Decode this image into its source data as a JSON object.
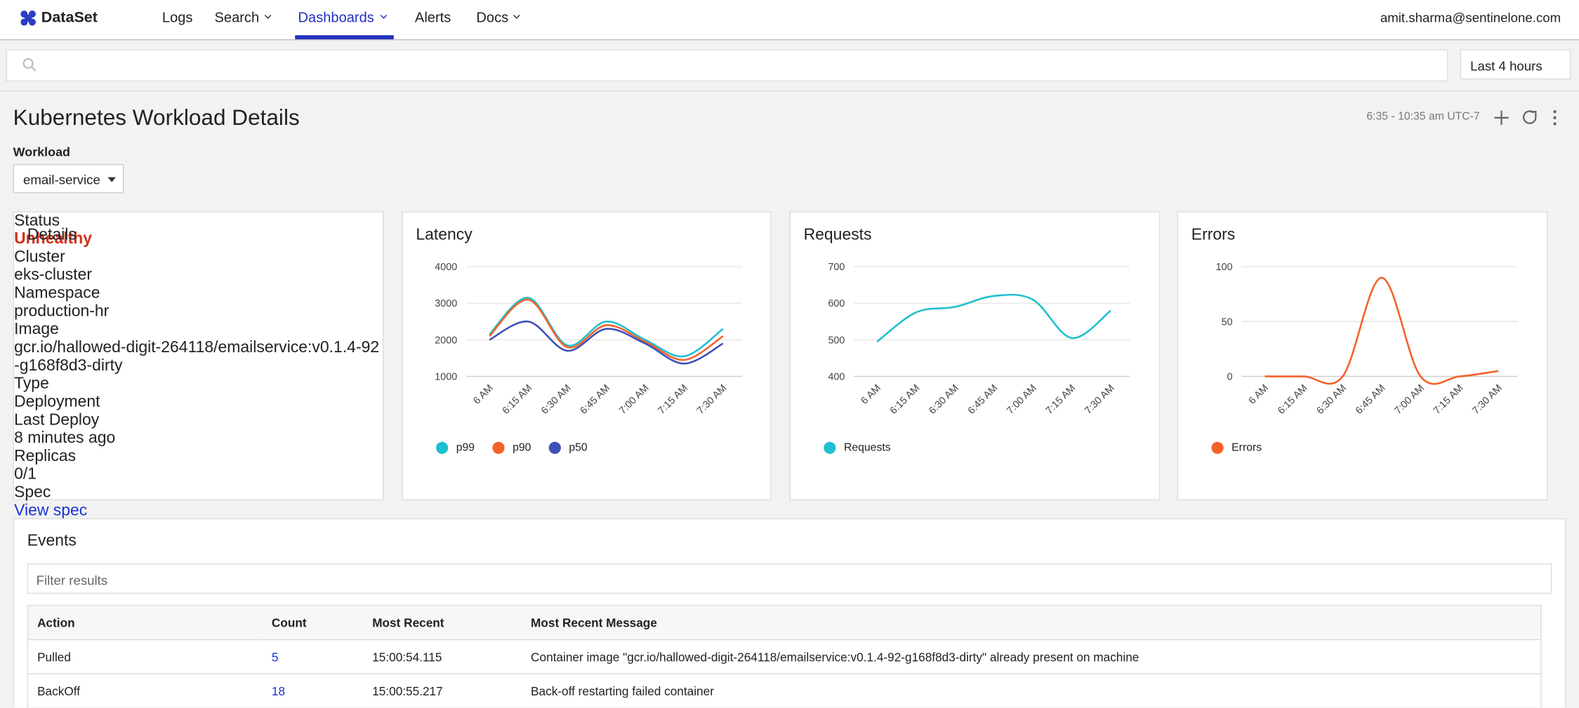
{
  "nav": {
    "brand": "DataSet",
    "items": [
      "Logs",
      "Search",
      "Dashboards",
      "Alerts",
      "Docs"
    ],
    "user": "amit.sharma@sentinelone.com"
  },
  "search": {
    "time_range": "Last 4 hours"
  },
  "dashboard": {
    "title": "Kubernetes Workload Details",
    "range": "6:35 - 10:35 am UTC-7",
    "workload_label": "Workload",
    "workload": "email-service"
  },
  "details": {
    "title": "Details",
    "rows": [
      [
        "Status",
        "Unhealthy"
      ],
      [
        "Cluster",
        "eks-cluster"
      ],
      [
        "Namespace",
        "production-hr"
      ],
      [
        "Image",
        "gcr.io/hallowed-digit-264118/emailservice:v0.1.4-92-g168f8d3-dirty"
      ],
      [
        "Type",
        "Deployment"
      ],
      [
        "Last Deploy",
        "8 minutes ago"
      ],
      [
        "Replicas",
        "0/1"
      ],
      [
        "Spec",
        "View spec"
      ]
    ]
  },
  "chart_data": [
    {
      "type": "line",
      "title": "Latency",
      "categories": [
        "6 AM",
        "6:15 AM",
        "6:30 AM",
        "6:45 AM",
        "7:00 AM",
        "7:15 AM",
        "7:30 AM"
      ],
      "ylim": [
        1000,
        4000
      ],
      "yticks": [
        1000,
        2000,
        3000,
        4000
      ],
      "grid": true,
      "series": [
        {
          "name": "p99",
          "color": "#1fbfcf",
          "values": [
            2150,
            3150,
            1850,
            2500,
            2000,
            1550,
            2300
          ]
        },
        {
          "name": "p90",
          "color": "#f4622a",
          "values": [
            2100,
            3100,
            1800,
            2400,
            1950,
            1450,
            2100
          ]
        },
        {
          "name": "p50",
          "color": "#3f4fb5",
          "values": [
            2000,
            2500,
            1700,
            2300,
            1900,
            1350,
            1900
          ]
        }
      ]
    },
    {
      "type": "line",
      "title": "Requests",
      "categories": [
        "6 AM",
        "6:15 AM",
        "6:30 AM",
        "6:45 AM",
        "7:00 AM",
        "7:15 AM",
        "7:30 AM"
      ],
      "ylim": [
        400,
        700
      ],
      "yticks": [
        400,
        500,
        600,
        700
      ],
      "grid": true,
      "series": [
        {
          "name": "Requests",
          "color": "#1fbfcf",
          "values": [
            495,
            575,
            590,
            620,
            610,
            505,
            580
          ]
        }
      ]
    },
    {
      "type": "line",
      "title": "Errors",
      "categories": [
        "6 AM",
        "6:15 AM",
        "6:30 AM",
        "6:45 AM",
        "7:00 AM",
        "7:15 AM",
        "7:30 AM"
      ],
      "ylim": [
        0,
        100
      ],
      "yticks": [
        0,
        50,
        100
      ],
      "grid": true,
      "series": [
        {
          "name": "Errors",
          "color": "#f4622a",
          "values": [
            0,
            0,
            0,
            90,
            0,
            0,
            5
          ]
        }
      ]
    }
  ],
  "events": {
    "title": "Events",
    "filter_placeholder": "Filter results",
    "columns": [
      "Action",
      "Count",
      "Most Recent",
      "Most Recent Message"
    ],
    "rows": [
      [
        "Pulled",
        "5",
        "15:00:54.115",
        "Container image \"gcr.io/hallowed-digit-264118/emailservice:v0.1.4-92-g168f8d3-dirty\" already present on machine"
      ],
      [
        "BackOff",
        "18",
        "15:00:55.217",
        "Back-off restarting failed container"
      ]
    ]
  }
}
